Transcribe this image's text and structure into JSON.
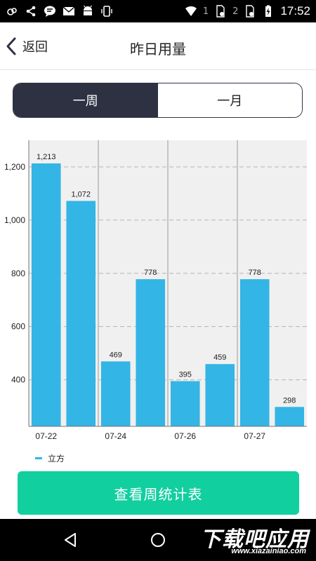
{
  "status_bar": {
    "time": "17:52",
    "icons": [
      "weather-icon",
      "share-icon",
      "chat-icon",
      "mail-icon",
      "android-icon",
      "vibrate-icon",
      "wifi-icon",
      "sim1-icon",
      "sim2-icon",
      "battery-charging-icon"
    ],
    "sim1_label": "1",
    "sim2_label": "2"
  },
  "header": {
    "back_label": "返回",
    "title": "昨日用量"
  },
  "tabs": [
    {
      "label": "一周",
      "active": true
    },
    {
      "label": "一月",
      "active": false
    }
  ],
  "chart_data": {
    "type": "bar",
    "series": [
      {
        "name": "立方",
        "color": "#33b5e5",
        "values": [
          1213,
          1072,
          469,
          778,
          395,
          459,
          778,
          298
        ]
      }
    ],
    "value_labels": [
      "1,213",
      "1,072",
      "469",
      "778",
      "395",
      "459",
      "778",
      "298"
    ],
    "x_tick_labels": [
      "07-22",
      "07-24",
      "07-26",
      "07-27"
    ],
    "y_ticks": [
      400,
      600,
      800,
      "1,000",
      "1,200"
    ],
    "y_tick_labels": [
      "400",
      "600",
      "800",
      "1,000",
      "1,200"
    ],
    "ylim": [
      225,
      1300
    ],
    "grid": true,
    "legend_position": "bottom-left"
  },
  "legend": {
    "label": "立方",
    "color": "#33b5e5"
  },
  "bottom_button": {
    "label": "查看周统计表"
  },
  "watermark": {
    "big_text": "下载吧应用",
    "small_text": "www.xiazainiao.com"
  },
  "colors": {
    "accent_dark": "#2e3142",
    "bar": "#33b5e5",
    "button": "#12cfa0",
    "plot_bg": "#f0f0f0"
  }
}
